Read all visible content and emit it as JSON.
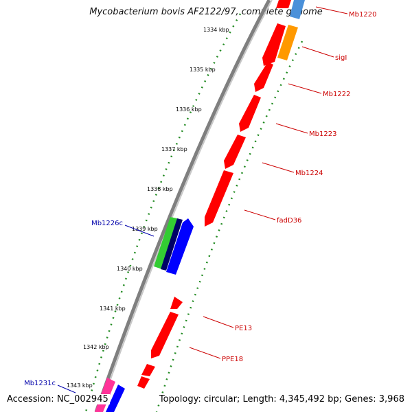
{
  "title": "Mycobacterium bovis AF2122/97, complete genome",
  "footer": {
    "accession": "Accession: NC_002945",
    "summary": "Topology: circular; Length: 4,345,492 bp; Genes: 3,968"
  },
  "colors": {
    "backbone": "#7f7f7f",
    "tick": "#228b22",
    "forward_gene": "#ff0000",
    "reverse_gene": "#0000ff",
    "label_forward": "#cc0000",
    "label_reverse": "#0000aa"
  },
  "ticks": [
    {
      "label": "1334 kbp"
    },
    {
      "label": "1335 kbp"
    },
    {
      "label": "1336 kbp"
    },
    {
      "label": "1337 kbp"
    },
    {
      "label": "1338 kbp"
    },
    {
      "label": "1339 kbp"
    },
    {
      "label": "1340 kbp"
    },
    {
      "label": "1341 kbp"
    },
    {
      "label": "1342 kbp"
    },
    {
      "label": "1343 kbp"
    }
  ],
  "genes": [
    {
      "label": "Mb1220",
      "strand": "forward"
    },
    {
      "label": "sigI",
      "strand": "forward"
    },
    {
      "label": "Mb1222",
      "strand": "forward"
    },
    {
      "label": "Mb1223",
      "strand": "forward"
    },
    {
      "label": "Mb1224",
      "strand": "forward"
    },
    {
      "label": "fadD36",
      "strand": "forward"
    },
    {
      "label": "PE13",
      "strand": "forward"
    },
    {
      "label": "PPE18",
      "strand": "forward"
    },
    {
      "label": "Mb1226c",
      "strand": "reverse"
    },
    {
      "label": "Mb1231c",
      "strand": "reverse"
    }
  ]
}
